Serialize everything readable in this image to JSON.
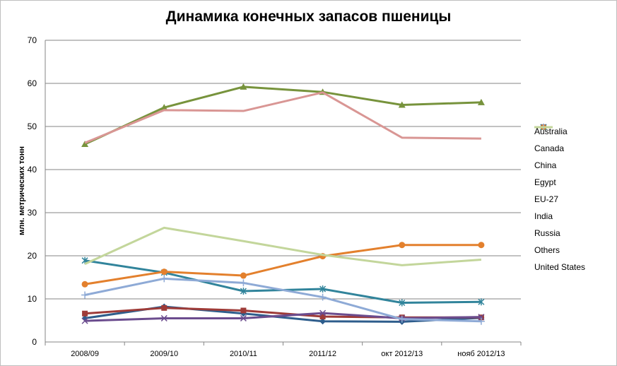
{
  "chart_data": {
    "type": "line",
    "title": "Динамика конечных запасов пшеницы",
    "ylabel": "млн. метрических тонн",
    "xlabel": "",
    "categories": [
      "2008/09",
      "2009/10",
      "2010/11",
      "2011/12",
      "окт 2012/13",
      "нояб 2012/13"
    ],
    "ylim": [
      0,
      70
    ],
    "yticks": [
      0,
      10,
      20,
      30,
      40,
      50,
      60,
      70
    ],
    "grid": true,
    "legend_position": "right",
    "series": [
      {
        "name": "Australia",
        "color": "#2e5d8c",
        "marker": "diamond",
        "values": [
          5.5,
          8.2,
          6.6,
          4.8,
          4.7,
          5.6
        ]
      },
      {
        "name": "Canada",
        "color": "#9e3b38",
        "marker": "square",
        "values": [
          6.6,
          7.9,
          7.3,
          5.9,
          5.7,
          5.7
        ]
      },
      {
        "name": "China",
        "color": "#77933c",
        "marker": "triangle",
        "values": [
          45.9,
          54.4,
          59.2,
          58.0,
          55.0,
          55.6
        ]
      },
      {
        "name": "Egypt",
        "color": "#6b4c8e",
        "marker": "x",
        "values": [
          4.9,
          5.5,
          5.5,
          6.7,
          5.5,
          5.8
        ]
      },
      {
        "name": "EU-27",
        "color": "#31849b",
        "marker": "asterisk",
        "values": [
          18.9,
          16.1,
          11.8,
          12.3,
          9.1,
          9.3
        ]
      },
      {
        "name": "India",
        "color": "#e3802d",
        "marker": "circle",
        "values": [
          13.4,
          16.3,
          15.4,
          19.9,
          22.5,
          22.5
        ]
      },
      {
        "name": "Russia",
        "color": "#8eaad6",
        "marker": "plus",
        "values": [
          10.9,
          14.7,
          13.7,
          10.4,
          5.3,
          4.8
        ]
      },
      {
        "name": "Others",
        "color": "#d99694",
        "marker": "none",
        "values": [
          46.2,
          53.8,
          53.6,
          57.9,
          47.4,
          47.2
        ]
      },
      {
        "name": "United States",
        "color": "#c3d69b",
        "marker": "none",
        "values": [
          18.1,
          26.5,
          23.4,
          20.2,
          17.8,
          19.1
        ]
      }
    ]
  }
}
